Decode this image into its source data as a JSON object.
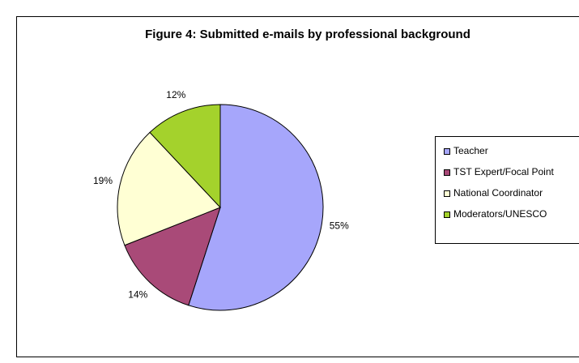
{
  "chart_data": {
    "type": "pie",
    "title": "Figure 4: Submitted e-mails by professional background",
    "categories": [
      "Teacher",
      "TST Expert/Focal Point",
      "National Coordinator",
      "Moderators/UNESCO"
    ],
    "values": [
      55,
      14,
      19,
      12
    ],
    "value_labels": [
      "55%",
      "14%",
      "19%",
      "12%"
    ],
    "colors": [
      "#a6a6fb",
      "#a94a78",
      "#ffffd4",
      "#a4d22c"
    ],
    "legend": "right"
  }
}
